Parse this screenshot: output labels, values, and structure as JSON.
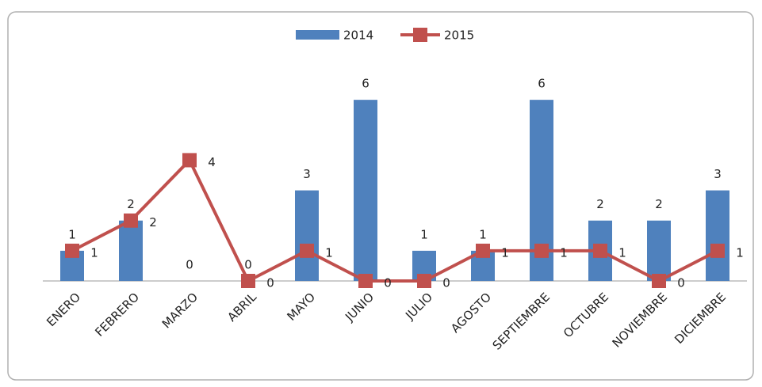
{
  "chart_data": {
    "type": "combo",
    "categories": [
      "ENERO",
      "FEBRERO",
      "MARZO",
      "ABRIL",
      "MAYO",
      "JUNIO",
      "JULIO",
      "AGOSTO",
      "SEPTIEMBRE",
      "OCTUBRE",
      "NOVIEMBRE",
      "DICIEMBRE"
    ],
    "series": [
      {
        "name": "2014",
        "type": "bar",
        "color": "#4f81bd",
        "values": [
          1,
          2,
          0,
          0,
          3,
          6,
          1,
          1,
          6,
          2,
          2,
          3
        ]
      },
      {
        "name": "2015",
        "type": "line",
        "color": "#c0504d",
        "values": [
          1,
          2,
          4,
          0,
          1,
          0,
          0,
          1,
          1,
          1,
          0,
          1
        ]
      }
    ],
    "ylim": [
      0,
      7
    ],
    "legend": "top",
    "data_labels": true
  }
}
